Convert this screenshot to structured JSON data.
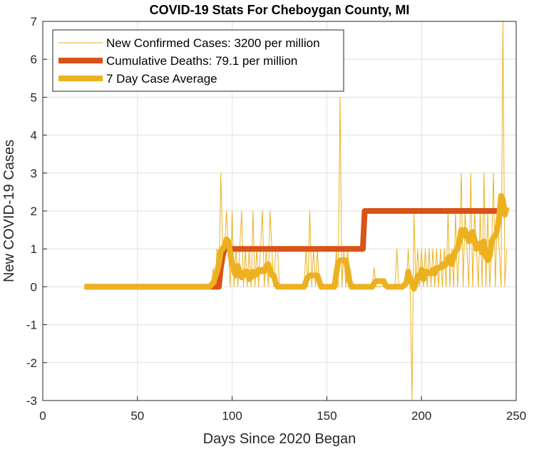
{
  "chart_data": {
    "type": "line",
    "title": "COVID-19 Stats For Cheboygan County, MI",
    "xlabel": "Days Since 2020 Began",
    "ylabel": "New COVID-19 Cases",
    "xlim": [
      0,
      250
    ],
    "ylim": [
      -3,
      7
    ],
    "xticks": [
      0,
      50,
      100,
      150,
      200,
      250
    ],
    "yticks": [
      -3,
      -2,
      -1,
      0,
      1,
      2,
      3,
      4,
      5,
      6,
      7
    ],
    "grid": true,
    "legend_position": "top-left",
    "series": [
      {
        "name": "New Confirmed Cases: 3200 per million",
        "color": "#EDB120",
        "style": "thin",
        "points": [
          [
            22,
            0
          ],
          [
            23,
            0
          ],
          [
            30,
            0
          ],
          [
            40,
            0
          ],
          [
            50,
            0
          ],
          [
            60,
            0
          ],
          [
            70,
            0
          ],
          [
            80,
            0
          ],
          [
            88,
            0
          ],
          [
            89,
            0
          ],
          [
            90,
            0.5
          ],
          [
            91,
            0
          ],
          [
            92,
            1
          ],
          [
            93,
            0
          ],
          [
            94,
            3
          ],
          [
            95,
            1
          ],
          [
            96,
            1
          ],
          [
            97,
            2
          ],
          [
            98,
            1
          ],
          [
            99,
            0
          ],
          [
            100,
            2
          ],
          [
            101,
            0
          ],
          [
            102,
            1
          ],
          [
            103,
            0
          ],
          [
            104,
            1
          ],
          [
            105,
            2
          ],
          [
            106,
            0
          ],
          [
            107,
            1
          ],
          [
            108,
            0
          ],
          [
            109,
            1
          ],
          [
            110,
            0
          ],
          [
            111,
            2
          ],
          [
            112,
            0
          ],
          [
            113,
            1
          ],
          [
            114,
            0
          ],
          [
            115,
            1
          ],
          [
            116,
            2
          ],
          [
            117,
            0
          ],
          [
            118,
            1
          ],
          [
            119,
            0
          ],
          [
            120,
            2
          ],
          [
            121,
            1
          ],
          [
            122,
            0
          ],
          [
            123,
            1
          ],
          [
            124,
            1
          ],
          [
            125,
            0
          ],
          [
            126,
            0
          ],
          [
            128,
            0
          ],
          [
            130,
            0
          ],
          [
            132,
            0
          ],
          [
            134,
            0
          ],
          [
            136,
            0
          ],
          [
            138,
            0
          ],
          [
            139,
            1
          ],
          [
            140,
            0
          ],
          [
            141,
            2
          ],
          [
            142,
            0
          ],
          [
            143,
            1
          ],
          [
            144,
            0
          ],
          [
            145,
            1
          ],
          [
            146,
            0
          ],
          [
            148,
            0
          ],
          [
            150,
            0
          ],
          [
            152,
            0
          ],
          [
            154,
            0
          ],
          [
            155,
            1
          ],
          [
            156,
            0
          ],
          [
            157,
            5
          ],
          [
            158,
            0
          ],
          [
            159,
            1
          ],
          [
            160,
            0
          ],
          [
            161,
            1
          ],
          [
            162,
            0
          ],
          [
            163,
            0
          ],
          [
            165,
            0
          ],
          [
            167,
            0
          ],
          [
            169,
            0
          ],
          [
            170,
            0
          ],
          [
            172,
            0
          ],
          [
            174,
            0
          ],
          [
            175,
            0.5
          ],
          [
            176,
            0
          ],
          [
            178,
            0
          ],
          [
            180,
            0
          ],
          [
            182,
            0
          ],
          [
            184,
            0
          ],
          [
            186,
            0
          ],
          [
            187,
            1
          ],
          [
            188,
            0
          ],
          [
            190,
            0
          ],
          [
            191,
            0
          ],
          [
            192,
            0
          ],
          [
            193,
            1
          ],
          [
            194,
            0
          ],
          [
            195,
            -3
          ],
          [
            196,
            2
          ],
          [
            197,
            0
          ],
          [
            198,
            1
          ],
          [
            199,
            0
          ],
          [
            200,
            1
          ],
          [
            201,
            0
          ],
          [
            202,
            1
          ],
          [
            203,
            0
          ],
          [
            204,
            1
          ],
          [
            205,
            0
          ],
          [
            206,
            1
          ],
          [
            207,
            0
          ],
          [
            208,
            1
          ],
          [
            209,
            0
          ],
          [
            210,
            1
          ],
          [
            211,
            0
          ],
          [
            212,
            1
          ],
          [
            213,
            0
          ],
          [
            214,
            2
          ],
          [
            215,
            0
          ],
          [
            216,
            1
          ],
          [
            217,
            0
          ],
          [
            218,
            2
          ],
          [
            219,
            0
          ],
          [
            220,
            1
          ],
          [
            221,
            3
          ],
          [
            222,
            0
          ],
          [
            223,
            2
          ],
          [
            224,
            1
          ],
          [
            225,
            0
          ],
          [
            226,
            3
          ],
          [
            227,
            0
          ],
          [
            228,
            2
          ],
          [
            229,
            1
          ],
          [
            230,
            0
          ],
          [
            231,
            2
          ],
          [
            232,
            0
          ],
          [
            233,
            3
          ],
          [
            234,
            0
          ],
          [
            235,
            2
          ],
          [
            236,
            0
          ],
          [
            237,
            1
          ],
          [
            238,
            3
          ],
          [
            239,
            0
          ],
          [
            240,
            2
          ],
          [
            241,
            1
          ],
          [
            242,
            0
          ],
          [
            243,
            7
          ],
          [
            244,
            0
          ],
          [
            245,
            1
          ]
        ]
      },
      {
        "name": "Cumulative Deaths: 79.1 per million",
        "color": "#D95319",
        "style": "thick",
        "points": [
          [
            22,
            0
          ],
          [
            93,
            0
          ],
          [
            94,
            0.5
          ],
          [
            95,
            0.8
          ],
          [
            96,
            1
          ],
          [
            169,
            1
          ],
          [
            170,
            2
          ],
          [
            245,
            2
          ]
        ]
      },
      {
        "name": "7 Day Case Average",
        "color": "#EDB120",
        "style": "thick",
        "points": [
          [
            22,
            0
          ],
          [
            88,
            0
          ],
          [
            89,
            0.05
          ],
          [
            90,
            0.1
          ],
          [
            91,
            0.25
          ],
          [
            92,
            0.4
          ],
          [
            93,
            0.6
          ],
          [
            94,
            0.95
          ],
          [
            95,
            1.0
          ],
          [
            96,
            1.1
          ],
          [
            97,
            1.25
          ],
          [
            98,
            1.2
          ],
          [
            99,
            0.9
          ],
          [
            100,
            0.6
          ],
          [
            101,
            0.4
          ],
          [
            102,
            0.3
          ],
          [
            103,
            0.55
          ],
          [
            104,
            0.4
          ],
          [
            105,
            0.25
          ],
          [
            106,
            0.3
          ],
          [
            107,
            0.4
          ],
          [
            108,
            0.4
          ],
          [
            109,
            0.2
          ],
          [
            110,
            0.25
          ],
          [
            111,
            0.4
          ],
          [
            112,
            0.3
          ],
          [
            113,
            0.35
          ],
          [
            114,
            0.45
          ],
          [
            115,
            0.4
          ],
          [
            116,
            0.45
          ],
          [
            117,
            0.4
          ],
          [
            118,
            0.55
          ],
          [
            119,
            0.6
          ],
          [
            120,
            0.45
          ],
          [
            121,
            0.3
          ],
          [
            122,
            0.3
          ],
          [
            123,
            0.1
          ],
          [
            124,
            0
          ],
          [
            125,
            0
          ],
          [
            130,
            0
          ],
          [
            135,
            0
          ],
          [
            138,
            0
          ],
          [
            139,
            0.15
          ],
          [
            140,
            0.25
          ],
          [
            141,
            0.3
          ],
          [
            145,
            0.3
          ],
          [
            146,
            0.15
          ],
          [
            147,
            0
          ],
          [
            150,
            0
          ],
          [
            154,
            0
          ],
          [
            155,
            0.35
          ],
          [
            156,
            0.65
          ],
          [
            157,
            0.7
          ],
          [
            160,
            0.7
          ],
          [
            161,
            0.45
          ],
          [
            162,
            0.15
          ],
          [
            163,
            0
          ],
          [
            170,
            0
          ],
          [
            174,
            0
          ],
          [
            175,
            0.1
          ],
          [
            176,
            0.15
          ],
          [
            180,
            0.15
          ],
          [
            181,
            0.05
          ],
          [
            182,
            0
          ],
          [
            190,
            0
          ],
          [
            191,
            0.05
          ],
          [
            192,
            0.1
          ],
          [
            193,
            0.4
          ],
          [
            194,
            0.2
          ],
          [
            195,
            0.1
          ],
          [
            196,
            -0.05
          ],
          [
            197,
            0.1
          ],
          [
            198,
            0.3
          ],
          [
            199,
            0.25
          ],
          [
            200,
            0.45
          ],
          [
            201,
            0.2
          ],
          [
            202,
            0.4
          ],
          [
            203,
            0.4
          ],
          [
            204,
            0.35
          ],
          [
            205,
            0.35
          ],
          [
            206,
            0.45
          ],
          [
            207,
            0.35
          ],
          [
            208,
            0.5
          ],
          [
            209,
            0.5
          ],
          [
            210,
            0.5
          ],
          [
            211,
            0.6
          ],
          [
            212,
            0.55
          ],
          [
            213,
            0.6
          ],
          [
            214,
            0.75
          ],
          [
            215,
            0.8
          ],
          [
            216,
            0.6
          ],
          [
            217,
            0.8
          ],
          [
            218,
            0.95
          ],
          [
            219,
            1.0
          ],
          [
            220,
            1.2
          ],
          [
            221,
            1.5
          ],
          [
            222,
            1.35
          ],
          [
            223,
            1.5
          ],
          [
            224,
            1.35
          ],
          [
            225,
            1.2
          ],
          [
            226,
            1.4
          ],
          [
            227,
            1.45
          ],
          [
            228,
            1.25
          ],
          [
            229,
            1.0
          ],
          [
            230,
            1.1
          ],
          [
            231,
            1.15
          ],
          [
            232,
            0.9
          ],
          [
            233,
            1.2
          ],
          [
            234,
            0.8
          ],
          [
            235,
            0.7
          ],
          [
            236,
            0.8
          ],
          [
            237,
            1.2
          ],
          [
            238,
            1.3
          ],
          [
            239,
            1.35
          ],
          [
            240,
            1.5
          ],
          [
            241,
            1.85
          ],
          [
            242,
            2.4
          ],
          [
            243,
            2.3
          ],
          [
            244,
            1.9
          ],
          [
            245,
            2.1
          ]
        ]
      }
    ]
  }
}
